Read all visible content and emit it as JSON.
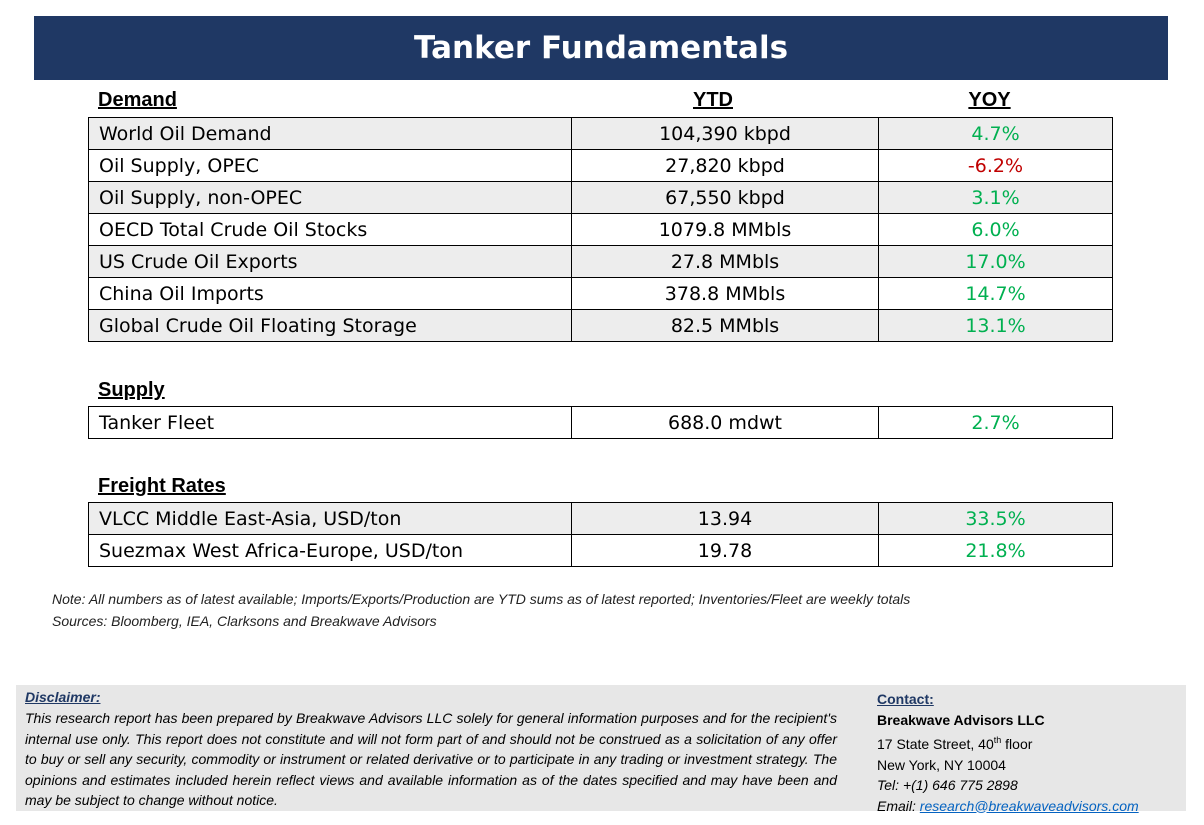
{
  "title": "Tanker Fundamentals",
  "demand": {
    "heading": "Demand",
    "col_ytd": "YTD",
    "col_yoy": "YOY",
    "rows": [
      {
        "name": "World Oil Demand",
        "ytd": "104,390 kbpd",
        "yoy": "4.7%",
        "sign": "pos"
      },
      {
        "name": "Oil Supply, OPEC",
        "ytd": "27,820 kbpd",
        "yoy": "-6.2%",
        "sign": "neg"
      },
      {
        "name": "Oil Supply, non-OPEC",
        "ytd": "67,550 kbpd",
        "yoy": "3.1%",
        "sign": "pos"
      },
      {
        "name": "OECD Total Crude Oil Stocks",
        "ytd": "1079.8 MMbls",
        "yoy": "6.0%",
        "sign": "pos"
      },
      {
        "name": "US Crude Oil Exports",
        "ytd": "27.8 MMbls",
        "yoy": "17.0%",
        "sign": "pos"
      },
      {
        "name": "China Oil Imports",
        "ytd": "378.8 MMbls",
        "yoy": "14.7%",
        "sign": "pos"
      },
      {
        "name": "Global Crude Oil Floating Storage",
        "ytd": "82.5 MMbls",
        "yoy": "13.1%",
        "sign": "pos"
      }
    ]
  },
  "supply": {
    "heading": "Supply",
    "rows": [
      {
        "name": "Tanker Fleet",
        "ytd": "688.0 mdwt",
        "yoy": "2.7%",
        "sign": "pos"
      }
    ]
  },
  "freight": {
    "heading": "Freight Rates",
    "rows": [
      {
        "name": "VLCC Middle East-Asia, USD/ton",
        "ytd": "13.94",
        "yoy": "33.5%",
        "sign": "pos"
      },
      {
        "name": "Suezmax West Africa-Europe, USD/ton",
        "ytd": "19.78",
        "yoy": "21.8%",
        "sign": "pos"
      }
    ]
  },
  "note": "Note:  All numbers as of latest available; Imports/Exports/Production are YTD sums as of latest reported; Inventories/Fleet are weekly totals",
  "sources": "Sources: Bloomberg, IEA, Clarksons and Breakwave Advisors",
  "disclaimer": {
    "title": "Disclaimer:",
    "body": "This research report has been prepared by Breakwave Advisors LLC solely for general information purposes and for the recipient's internal use only. This report does not constitute and will not form part of and should not be construed as a solicitation of any offer to buy or sell any security, commodity or instrument or related derivative or to participate in any trading or investment strategy. The opinions and estimates included herein reflect views and available information as of the dates specified and may have been and may be subject to change without notice."
  },
  "contact": {
    "title": "Contact:",
    "firm": "Breakwave Advisors LLC",
    "street_pre": "17 State Street, 40",
    "street_sup": "th",
    "street_post": " floor",
    "city": "New York, NY 10004",
    "tel": "Tel: +(1) 646 775 2898",
    "email_label": "Email: ",
    "email": "research@breakwaveadvisors.com"
  },
  "colors": {
    "banner": "#1f3864",
    "positive": "#00b050",
    "negative": "#c00000",
    "shade": "#ededed"
  }
}
